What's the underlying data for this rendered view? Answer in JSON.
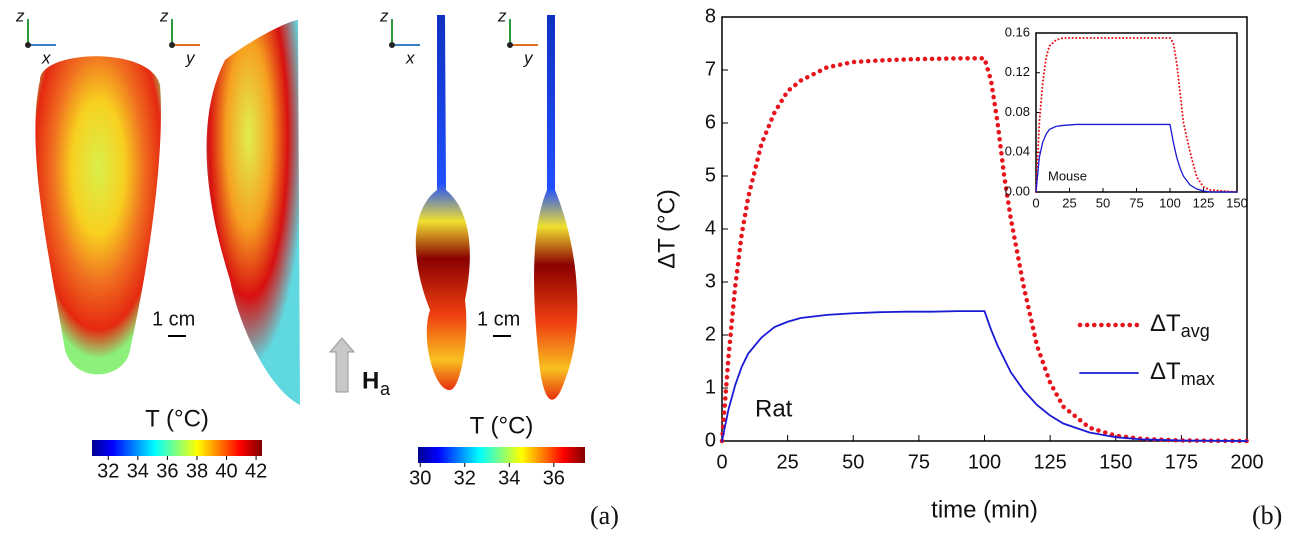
{
  "panel_a": {
    "triads": [
      {
        "up": "z",
        "right": "x"
      },
      {
        "up": "z",
        "right": "y"
      },
      {
        "up": "z",
        "right": "x"
      },
      {
        "up": "z",
        "right": "y"
      }
    ],
    "scale_bars": [
      "1 cm",
      "1 cm"
    ],
    "field": {
      "symbol": "H",
      "sub": "a"
    },
    "colorbars": [
      {
        "title": "T (°C)",
        "clim": [
          30.9,
          42.4
        ],
        "ticks": [
          32,
          34,
          36,
          38,
          40,
          42
        ]
      },
      {
        "title": "T (°C)",
        "clim": [
          29.9,
          37.4
        ],
        "ticks": [
          30,
          32,
          34,
          36
        ]
      }
    ],
    "label": "(a)"
  },
  "chart_data": [
    {
      "type": "line",
      "label": "(b)",
      "annotation": "Rat",
      "xlabel": "time (min)",
      "ylabel": "ΔT (°C)",
      "xlim": [
        0,
        200
      ],
      "ylim": [
        0,
        8
      ],
      "xticks": [
        0,
        25,
        50,
        75,
        100,
        125,
        150,
        175,
        200
      ],
      "yticks": [
        0,
        1,
        2,
        3,
        4,
        5,
        6,
        7,
        8
      ],
      "x": [
        0,
        2.5,
        5,
        7.5,
        10,
        15,
        20,
        25,
        30,
        40,
        50,
        60,
        70,
        80,
        90,
        100,
        102.5,
        105,
        107.5,
        110,
        115,
        120,
        125,
        130,
        140,
        150,
        160,
        175,
        200
      ],
      "series": [
        {
          "name": "ΔTavg",
          "color": "#e8141c",
          "dotted": true,
          "values": [
            0,
            1.6,
            2.9,
            3.9,
            4.6,
            5.6,
            6.2,
            6.6,
            6.8,
            7.05,
            7.15,
            7.18,
            7.2,
            7.21,
            7.22,
            7.22,
            6.8,
            6.0,
            5.0,
            4.2,
            2.9,
            1.8,
            1.1,
            0.65,
            0.25,
            0.1,
            0.04,
            0.01,
            0
          ]
        },
        {
          "name": "ΔTmax",
          "color": "#1a1ad6",
          "dotted": false,
          "values": [
            0,
            0.6,
            1.05,
            1.4,
            1.65,
            1.95,
            2.15,
            2.25,
            2.32,
            2.38,
            2.41,
            2.43,
            2.44,
            2.44,
            2.45,
            2.45,
            2.1,
            1.8,
            1.55,
            1.3,
            0.95,
            0.68,
            0.48,
            0.33,
            0.16,
            0.07,
            0.03,
            0.01,
            0
          ]
        }
      ]
    },
    {
      "type": "line",
      "annotation": "Mouse",
      "xlim": [
        0,
        150
      ],
      "ylim": [
        0,
        0.16
      ],
      "xticks": [
        0,
        25,
        50,
        75,
        100,
        125,
        150
      ],
      "yticks": [
        {
          "value": 0,
          "label": "0.00"
        },
        0.04,
        0.08,
        0.12,
        0.16
      ],
      "x": [
        0,
        2.5,
        5,
        7.5,
        10,
        15,
        20,
        30,
        50,
        70,
        90,
        100,
        102.5,
        105,
        107.5,
        110,
        115,
        120,
        125,
        130,
        150
      ],
      "series": [
        {
          "color": "#e8141c",
          "dotted": true,
          "values": [
            0,
            0.07,
            0.11,
            0.135,
            0.147,
            0.153,
            0.155,
            0.155,
            0.155,
            0.155,
            0.155,
            0.155,
            0.15,
            0.13,
            0.1,
            0.07,
            0.04,
            0.015,
            0.005,
            0.002,
            0
          ]
        },
        {
          "color": "#1a1ad6",
          "dotted": false,
          "values": [
            0,
            0.035,
            0.05,
            0.058,
            0.063,
            0.066,
            0.067,
            0.068,
            0.068,
            0.068,
            0.068,
            0.068,
            0.05,
            0.035,
            0.024,
            0.016,
            0.007,
            0.003,
            0.001,
            0,
            0
          ]
        }
      ]
    }
  ]
}
